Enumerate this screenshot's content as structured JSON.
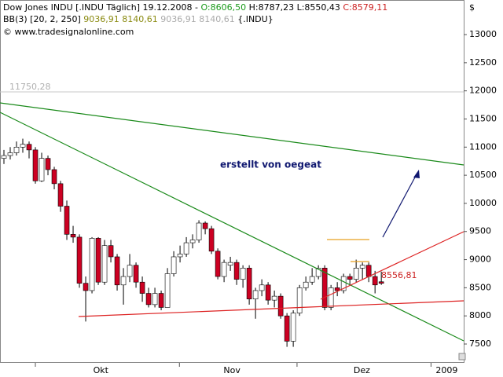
{
  "chart_data": {
    "type": "candlestick",
    "header": {
      "title": "Dow Jones INDU [.INDU  Täglich]",
      "date": "19.12.2008",
      "open_label": "O:8606,50",
      "high_label": "H:8787,23",
      "low_label": "L:8550,43",
      "close_label": "C:8579,11"
    },
    "indicator": {
      "name": "BB(3) [20, 2, 250]",
      "upper": "9036,91",
      "lower": "8140,61",
      "previous": "9036,91  8140,61",
      "symbol": "{.INDU}"
    },
    "copyright": "© www.tradesignalonline.com",
    "currency": "$",
    "annotations": {
      "level": "11750,28",
      "author": "erstellt von oegeat",
      "price": "8556,81"
    },
    "up_color": "#ffffff",
    "down_color": "#cc0022",
    "open": [
      10800,
      10850,
      10900,
      11000,
      11050,
      10950,
      10400,
      10800,
      10600,
      10350,
      9950,
      9450,
      9400,
      8580,
      8450,
      9380,
      8600,
      9250,
      9050,
      8550,
      8700,
      8900,
      8600,
      8400,
      8200,
      8400,
      8150,
      8750,
      9050,
      9100,
      9300,
      9350,
      9650,
      9550,
      9150,
      8700,
      8900,
      8950,
      8650,
      8850,
      8300,
      8450,
      8550,
      8280,
      8350,
      8000,
      7550,
      8050,
      8500,
      8600,
      8700,
      8850,
      8150,
      8500,
      8450,
      8700,
      8650,
      8850,
      8900,
      8700,
      8606.5
    ],
    "high": [
      10950,
      11000,
      11100,
      11150,
      11100,
      11000,
      10900,
      10850,
      10650,
      10400,
      10050,
      9600,
      9450,
      8700,
      9400,
      9400,
      9350,
      9350,
      9100,
      8850,
      9100,
      8950,
      8700,
      8500,
      8500,
      8450,
      8850,
      9150,
      9250,
      9400,
      9450,
      9700,
      9680,
      9600,
      9200,
      9000,
      9050,
      9000,
      8900,
      8900,
      8500,
      8650,
      8600,
      8450,
      8400,
      8050,
      8100,
      8550,
      8700,
      8850,
      8900,
      8900,
      8550,
      8600,
      8750,
      8750,
      9000,
      8950,
      8950,
      8800,
      8787.23
    ],
    "low": [
      10700,
      10780,
      10850,
      10900,
      10800,
      10350,
      10380,
      10500,
      10250,
      9850,
      9350,
      9300,
      8500,
      7900,
      8400,
      8550,
      8550,
      8950,
      8450,
      8200,
      8600,
      8500,
      8250,
      8150,
      8150,
      8100,
      8150,
      8700,
      8950,
      9050,
      9200,
      9300,
      9450,
      9100,
      8650,
      8600,
      8800,
      8550,
      8500,
      8200,
      7950,
      8350,
      8200,
      8150,
      7950,
      7450,
      7450,
      8000,
      8450,
      8550,
      8650,
      8100,
      8100,
      8350,
      8400,
      8550,
      8600,
      8650,
      8600,
      8400,
      8550.43
    ],
    "close": [
      10850,
      10900,
      11000,
      11050,
      10950,
      10400,
      10800,
      10600,
      10350,
      9950,
      9450,
      9400,
      8580,
      8450,
      9380,
      8600,
      9250,
      9050,
      8550,
      8700,
      8900,
      8600,
      8400,
      8200,
      8400,
      8150,
      8750,
      9050,
      9100,
      9300,
      9350,
      9650,
      9550,
      9150,
      8700,
      8950,
      8950,
      8650,
      8850,
      8300,
      8450,
      8550,
      8280,
      8350,
      8000,
      7550,
      8050,
      8500,
      8600,
      8700,
      8850,
      8150,
      8500,
      8450,
      8700,
      8650,
      8850,
      8900,
      8700,
      8550,
      8579.11
    ],
    "ylim": [
      7165,
      13615
    ],
    "yticks": [
      7500,
      8000,
      8500,
      9000,
      9500,
      10000,
      10500,
      11000,
      11500,
      12000,
      12500,
      13000
    ],
    "xlim": [
      -0.625,
      73.1
    ],
    "xticks": [
      {
        "value": 15.4,
        "label": "Okt"
      },
      {
        "value": 36.25,
        "label": "Nov"
      },
      {
        "value": 56.9,
        "label": "Dez"
      },
      {
        "value": 70.4,
        "label": "2009"
      }
    ],
    "month_marks": [
      5,
      27.9,
      46.6,
      67.9
    ]
  }
}
